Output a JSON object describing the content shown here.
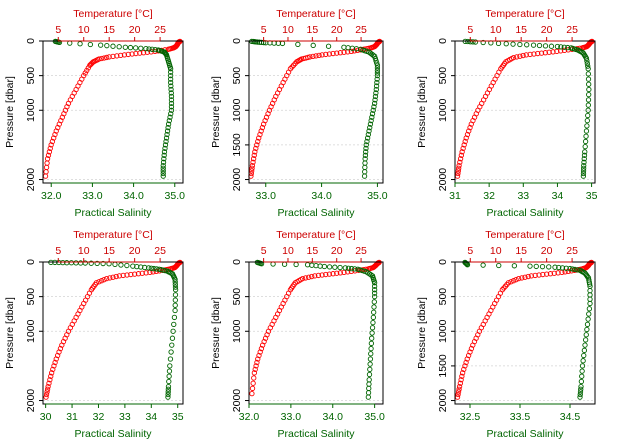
{
  "chart_data": [
    {
      "type": "scatter",
      "xlabel_bottom": "Practical Salinity",
      "xlabel_top": "Temperature [°C]",
      "ylabel": "Pressure [dbar]",
      "salinity_lim": [
        31.8,
        35.2
      ],
      "salinity_ticks": [
        32.0,
        33.0,
        34.0,
        35.0
      ],
      "salinity_tick_labels": [
        "32.0",
        "33.0",
        "34.0",
        "35.0"
      ],
      "temperature_lim": [
        2,
        29.5
      ],
      "temperature_ticks": [
        5,
        10,
        15,
        20,
        25
      ],
      "temperature_tick_labels": [
        "5",
        "10",
        "15",
        "20",
        "25"
      ],
      "pressure_lim": [
        2050,
        0
      ],
      "pressure_ticks": [
        0,
        500,
        1000,
        2000
      ],
      "pressure_tick_labels": [
        "0",
        "500",
        "1000",
        "2000"
      ],
      "grid": true,
      "series": [
        {
          "variable": "temperature",
          "color": "#ff0000",
          "x": [
            28.9,
            28.6,
            28.4,
            28.1,
            27.6,
            26.6,
            24.0,
            21.0,
            18.0,
            15.0,
            13.0,
            11.9,
            11.2,
            10.0,
            8.5,
            7.0,
            5.8,
            4.6,
            3.6,
            2.9,
            2.5
          ],
          "y": [
            5,
            20,
            50,
            80,
            100,
            120,
            150,
            175,
            200,
            230,
            260,
            300,
            350,
            500,
            700,
            900,
            1100,
            1300,
            1500,
            1700,
            1950
          ]
        },
        {
          "variable": "salinity",
          "color": "#006400",
          "x": [
            32.1,
            32.2,
            33.2,
            33.8,
            34.3,
            34.6,
            34.75,
            34.8,
            34.85,
            34.9,
            34.9,
            34.92,
            34.92,
            34.85,
            34.8,
            34.75,
            34.72,
            34.72
          ],
          "y": [
            5,
            20,
            60,
            90,
            110,
            130,
            160,
            200,
            300,
            400,
            600,
            800,
            1000,
            1200,
            1400,
            1600,
            1800,
            1950
          ]
        }
      ]
    },
    {
      "type": "scatter",
      "xlabel_bottom": "Practical Salinity",
      "xlabel_top": "Temperature [°C]",
      "ylabel": "Pressure [dbar]",
      "salinity_lim": [
        32.7,
        35.1
      ],
      "salinity_ticks": [
        33.0,
        34.0,
        35.0
      ],
      "salinity_tick_labels": [
        "33.0",
        "34.0",
        "35.0"
      ],
      "temperature_lim": [
        2,
        29.5
      ],
      "temperature_ticks": [
        5,
        10,
        15,
        20,
        25
      ],
      "temperature_tick_labels": [
        "5",
        "10",
        "15",
        "20",
        "25"
      ],
      "pressure_lim": [
        2050,
        0
      ],
      "pressure_ticks": [
        0,
        500,
        1000,
        1500,
        2000
      ],
      "pressure_tick_labels": [
        "0",
        "500",
        "1000",
        "1500",
        "2000"
      ],
      "grid": true,
      "series": [
        {
          "variable": "temperature",
          "color": "#ff0000",
          "x": [
            28.8,
            28.5,
            28.2,
            27.8,
            27.0,
            25.5,
            23.0,
            20.0,
            17.0,
            14.5,
            12.8,
            11.8,
            10.5,
            9.0,
            7.5,
            6.2,
            5.0,
            4.0,
            3.2,
            2.7,
            2.4
          ],
          "y": [
            5,
            20,
            50,
            80,
            100,
            120,
            150,
            175,
            200,
            230,
            260,
            300,
            400,
            600,
            800,
            1000,
            1200,
            1400,
            1600,
            1800,
            1950
          ]
        },
        {
          "variable": "salinity",
          "color": "#006400",
          "x": [
            32.75,
            32.85,
            33.0,
            33.3,
            34.4,
            34.7,
            34.85,
            34.95,
            35.0,
            35.0,
            34.98,
            34.95,
            34.9,
            34.85,
            34.8,
            34.78,
            34.77
          ],
          "y": [
            5,
            15,
            25,
            35,
            90,
            120,
            160,
            220,
            350,
            500,
            700,
            900,
            1100,
            1300,
            1500,
            1700,
            1950
          ]
        }
      ]
    },
    {
      "type": "scatter",
      "xlabel_bottom": "Practical Salinity",
      "xlabel_top": "Temperature [°C]",
      "ylabel": "Pressure [dbar]",
      "salinity_lim": [
        31.0,
        35.1
      ],
      "salinity_ticks": [
        31,
        32,
        33,
        34,
        35
      ],
      "salinity_tick_labels": [
        "31",
        "32",
        "33",
        "34",
        "35"
      ],
      "temperature_lim": [
        2,
        29.5
      ],
      "temperature_ticks": [
        5,
        10,
        15,
        20,
        25
      ],
      "temperature_tick_labels": [
        "5",
        "10",
        "15",
        "20",
        "25"
      ],
      "pressure_lim": [
        2050,
        0
      ],
      "pressure_ticks": [
        0,
        500,
        1000,
        2000
      ],
      "pressure_tick_labels": [
        "0",
        "500",
        "1000",
        "2000"
      ],
      "grid": true,
      "series": [
        {
          "variable": "temperature",
          "color": "#ff0000",
          "x": [
            28.9,
            28.6,
            28.3,
            27.9,
            27.0,
            25.0,
            22.0,
            19.0,
            16.0,
            13.5,
            12.0,
            11.0,
            9.5,
            8.0,
            6.5,
            5.2,
            4.2,
            3.4,
            2.8,
            2.5
          ],
          "y": [
            5,
            20,
            50,
            80,
            100,
            120,
            150,
            175,
            200,
            240,
            300,
            400,
            600,
            800,
            1000,
            1200,
            1400,
            1600,
            1800,
            1950
          ]
        },
        {
          "variable": "salinity",
          "color": "#006400",
          "x": [
            31.3,
            31.6,
            32.5,
            33.3,
            34.0,
            34.4,
            34.6,
            34.75,
            34.85,
            34.9,
            34.92,
            34.9,
            34.85,
            34.8,
            34.77,
            34.76
          ],
          "y": [
            5,
            15,
            40,
            60,
            80,
            100,
            130,
            170,
            250,
            400,
            700,
            1000,
            1300,
            1600,
            1800,
            1950
          ]
        }
      ]
    },
    {
      "type": "scatter",
      "xlabel_bottom": "Practical Salinity",
      "xlabel_top": "Temperature [°C]",
      "ylabel": "Pressure [dbar]",
      "salinity_lim": [
        29.9,
        35.2
      ],
      "salinity_ticks": [
        30,
        31,
        32,
        33,
        34,
        35
      ],
      "salinity_tick_labels": [
        "30",
        "31",
        "32",
        "33",
        "34",
        "35"
      ],
      "temperature_lim": [
        2,
        29.5
      ],
      "temperature_ticks": [
        5,
        10,
        15,
        20,
        25
      ],
      "temperature_tick_labels": [
        "5",
        "10",
        "15",
        "20",
        "25"
      ],
      "pressure_lim": [
        2050,
        0
      ],
      "pressure_ticks": [
        0,
        500,
        1000,
        2000
      ],
      "pressure_tick_labels": [
        "0",
        "500",
        "1000",
        "2000"
      ],
      "grid": true,
      "series": [
        {
          "variable": "temperature",
          "color": "#ff0000",
          "x": [
            28.9,
            28.6,
            28.3,
            27.9,
            27.0,
            25.5,
            23.0,
            20.0,
            17.0,
            14.5,
            12.5,
            11.5,
            10.0,
            8.5,
            7.0,
            5.7,
            4.6,
            3.7,
            3.0,
            2.6
          ],
          "y": [
            5,
            20,
            50,
            80,
            100,
            120,
            150,
            175,
            200,
            240,
            300,
            400,
            600,
            800,
            1000,
            1200,
            1400,
            1600,
            1800,
            1950
          ]
        },
        {
          "variable": "salinity",
          "color": "#006400",
          "x": [
            30.2,
            30.8,
            31.5,
            32.4,
            33.3,
            33.9,
            34.3,
            34.6,
            34.8,
            34.9,
            34.92,
            34.9,
            34.8,
            34.7,
            34.65,
            34.63
          ],
          "y": [
            5,
            10,
            15,
            25,
            60,
            85,
            105,
            130,
            170,
            250,
            400,
            700,
            1100,
            1500,
            1800,
            1950
          ]
        }
      ]
    },
    {
      "type": "scatter",
      "xlabel_bottom": "Practical Salinity",
      "xlabel_top": "Temperature [°C]",
      "ylabel": "Pressure [dbar]",
      "salinity_lim": [
        32.0,
        35.2
      ],
      "salinity_ticks": [
        32.0,
        33.0,
        34.0,
        35.0
      ],
      "salinity_tick_labels": [
        "32.0",
        "33.0",
        "34.0",
        "35.0"
      ],
      "temperature_lim": [
        2,
        29.5
      ],
      "temperature_ticks": [
        5,
        10,
        15,
        20,
        25
      ],
      "temperature_tick_labels": [
        "5",
        "10",
        "15",
        "20",
        "25"
      ],
      "pressure_lim": [
        2050,
        0
      ],
      "pressure_ticks": [
        0,
        500,
        1000,
        2000
      ],
      "pressure_tick_labels": [
        "0",
        "500",
        "1000",
        "2000"
      ],
      "grid": true,
      "series": [
        {
          "variable": "temperature",
          "color": "#ff0000",
          "x": [
            28.7,
            28.4,
            28.0,
            27.5,
            26.5,
            24.5,
            21.5,
            18.5,
            15.5,
            13.0,
            11.5,
            10.5,
            9.0,
            7.5,
            6.0,
            4.8,
            3.8,
            3.1,
            2.6
          ],
          "y": [
            5,
            20,
            50,
            80,
            100,
            120,
            150,
            175,
            200,
            240,
            300,
            400,
            600,
            800,
            1000,
            1200,
            1400,
            1600,
            1900
          ]
        },
        {
          "variable": "salinity",
          "color": "#006400",
          "x": [
            32.2,
            32.3,
            33.4,
            33.8,
            34.3,
            34.6,
            34.8,
            34.95,
            35.0,
            35.0,
            34.97,
            34.93,
            34.9,
            34.87,
            34.85
          ],
          "y": [
            5,
            25,
            40,
            65,
            85,
            105,
            140,
            200,
            300,
            500,
            800,
            1100,
            1400,
            1700,
            1950
          ]
        }
      ]
    },
    {
      "type": "scatter",
      "xlabel_bottom": "Practical Salinity",
      "xlabel_top": "Temperature [°C]",
      "ylabel": "Pressure [dbar]",
      "salinity_lim": [
        32.2,
        35.0
      ],
      "salinity_ticks": [
        32.5,
        33.5,
        34.5
      ],
      "salinity_tick_labels": [
        "32.5",
        "33.5",
        "34.5"
      ],
      "temperature_lim": [
        2,
        29.5
      ],
      "temperature_ticks": [
        5,
        10,
        15,
        20,
        25
      ],
      "temperature_tick_labels": [
        "5",
        "10",
        "15",
        "20",
        "25"
      ],
      "pressure_lim": [
        2050,
        0
      ],
      "pressure_ticks": [
        0,
        500,
        1000,
        1500,
        2000
      ],
      "pressure_tick_labels": [
        "0",
        "500",
        "1000",
        "1500",
        "2000"
      ],
      "grid": true,
      "series": [
        {
          "variable": "temperature",
          "color": "#ff0000",
          "x": [
            28.8,
            28.5,
            28.2,
            27.8,
            27.0,
            25.5,
            23.0,
            20.0,
            17.0,
            14.5,
            12.5,
            11.3,
            9.8,
            8.3,
            6.8,
            5.5,
            4.4,
            3.5,
            2.9,
            2.5
          ],
          "y": [
            5,
            20,
            50,
            80,
            100,
            120,
            150,
            175,
            200,
            240,
            300,
            400,
            600,
            800,
            1000,
            1200,
            1400,
            1600,
            1800,
            1950
          ]
        },
        {
          "variable": "salinity",
          "color": "#006400",
          "x": [
            32.4,
            32.45,
            33.7,
            34.2,
            34.5,
            34.7,
            34.8,
            34.87,
            34.9,
            34.9,
            34.85,
            34.8,
            34.75,
            34.72,
            34.7
          ],
          "y": [
            5,
            40,
            60,
            75,
            95,
            120,
            160,
            230,
            350,
            600,
            900,
            1200,
            1500,
            1800,
            1950
          ]
        }
      ]
    }
  ]
}
